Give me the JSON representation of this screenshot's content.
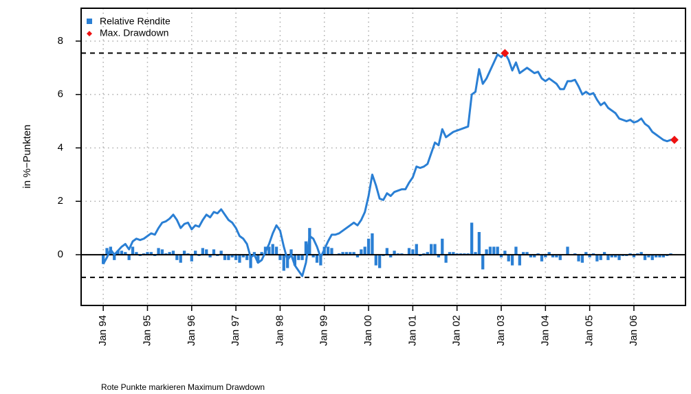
{
  "chart_data": {
    "type": "bar",
    "ylabel": "in %−Punkten",
    "footnote": "Rote Punkte markieren Maximum Drawdown",
    "legend": "top-left",
    "grid": true,
    "xlim": [
      "1993-07",
      "2007-03"
    ],
    "ylim": [
      -1.9,
      9.23
    ],
    "yticks": [
      0,
      2,
      4,
      6,
      8
    ],
    "xticks": [
      {
        "value": "1994-01",
        "label": "Jan 94"
      },
      {
        "value": "1995-01",
        "label": "Jan 95"
      },
      {
        "value": "1996-01",
        "label": "Jan 96"
      },
      {
        "value": "1997-01",
        "label": "Jan 97"
      },
      {
        "value": "1998-01",
        "label": "Jan 98"
      },
      {
        "value": "1999-01",
        "label": "Jan 99"
      },
      {
        "value": "2000-01",
        "label": "Jan 00"
      },
      {
        "value": "2001-01",
        "label": "Jan 01"
      },
      {
        "value": "2002-01",
        "label": "Jan 02"
      },
      {
        "value": "2003-01",
        "label": "Jan 03"
      },
      {
        "value": "2004-01",
        "label": "Jan 04"
      },
      {
        "value": "2005-01",
        "label": "Jan 05"
      },
      {
        "value": "2006-01",
        "label": "Jan 06"
      }
    ],
    "x": [
      "1994-01",
      "1994-02",
      "1994-03",
      "1994-04",
      "1994-05",
      "1994-06",
      "1994-07",
      "1994-08",
      "1994-09",
      "1994-10",
      "1994-11",
      "1994-12",
      "1995-01",
      "1995-02",
      "1995-03",
      "1995-04",
      "1995-05",
      "1995-06",
      "1995-07",
      "1995-08",
      "1995-09",
      "1995-10",
      "1995-11",
      "1995-12",
      "1996-01",
      "1996-02",
      "1996-03",
      "1996-04",
      "1996-05",
      "1996-06",
      "1996-07",
      "1996-08",
      "1996-09",
      "1996-10",
      "1996-11",
      "1996-12",
      "1997-01",
      "1997-02",
      "1997-03",
      "1997-04",
      "1997-05",
      "1997-06",
      "1997-07",
      "1997-08",
      "1997-09",
      "1997-10",
      "1997-11",
      "1997-12",
      "1998-01",
      "1998-02",
      "1998-03",
      "1998-04",
      "1998-05",
      "1998-06",
      "1998-07",
      "1998-08",
      "1998-09",
      "1998-10",
      "1998-11",
      "1998-12",
      "1999-01",
      "1999-02",
      "1999-03",
      "1999-04",
      "1999-05",
      "1999-06",
      "1999-07",
      "1999-08",
      "1999-09",
      "1999-10",
      "1999-11",
      "1999-12",
      "2000-01",
      "2000-02",
      "2000-03",
      "2000-04",
      "2000-05",
      "2000-06",
      "2000-07",
      "2000-08",
      "2000-09",
      "2000-10",
      "2000-11",
      "2000-12",
      "2001-01",
      "2001-02",
      "2001-03",
      "2001-04",
      "2001-05",
      "2001-06",
      "2001-07",
      "2001-08",
      "2001-09",
      "2001-10",
      "2001-11",
      "2001-12",
      "2002-01",
      "2002-02",
      "2002-03",
      "2002-04",
      "2002-05",
      "2002-06",
      "2002-07",
      "2002-08",
      "2002-09",
      "2002-10",
      "2002-11",
      "2002-12",
      "2003-01",
      "2003-02",
      "2003-03",
      "2003-04",
      "2003-05",
      "2003-06",
      "2003-07",
      "2003-08",
      "2003-09",
      "2003-10",
      "2003-11",
      "2003-12",
      "2004-01",
      "2004-02",
      "2004-03",
      "2004-04",
      "2004-05",
      "2004-06",
      "2004-07",
      "2004-08",
      "2004-09",
      "2004-10",
      "2004-11",
      "2004-12",
      "2005-01",
      "2005-02",
      "2005-03",
      "2005-04",
      "2005-05",
      "2005-06",
      "2005-07",
      "2005-08",
      "2005-09",
      "2005-10",
      "2005-11",
      "2005-12",
      "2006-01",
      "2006-02",
      "2006-03",
      "2006-04",
      "2006-05",
      "2006-06",
      "2006-07",
      "2006-08",
      "2006-09",
      "2006-10",
      "2006-11",
      "2006-12"
    ],
    "series": [
      {
        "name": "Relative Rendite",
        "color": "#2a7fd4",
        "values": [
          -0.35,
          0.25,
          0.3,
          -0.2,
          0.15,
          0.15,
          0.1,
          -0.2,
          0.3,
          0.1,
          -0.05,
          0.05,
          0.1,
          0.1,
          -0.05,
          0.25,
          0.2,
          0.05,
          0.1,
          0.15,
          -0.2,
          -0.3,
          0.15,
          0.05,
          -0.25,
          0.15,
          -0.05,
          0.25,
          0.2,
          -0.1,
          0.2,
          -0.05,
          0.15,
          -0.2,
          -0.2,
          -0.1,
          -0.2,
          -0.3,
          -0.1,
          -0.2,
          -0.5,
          0.1,
          -0.3,
          0.1,
          0.3,
          0.3,
          0.4,
          0.3,
          -0.2,
          -0.6,
          -0.5,
          0.2,
          -0.4,
          -0.2,
          -0.2,
          0.5,
          1.0,
          -0.1,
          -0.3,
          -0.4,
          0.3,
          0.3,
          0.25,
          0,
          0.05,
          0.1,
          0.1,
          0.1,
          0.1,
          -0.1,
          0.2,
          0.3,
          0.6,
          0.8,
          -0.4,
          -0.5,
          -0.05,
          0.25,
          -0.1,
          0.15,
          0.05,
          0.05,
          0,
          0.25,
          0.2,
          0.4,
          -0.05,
          0.05,
          0.1,
          0.4,
          0.4,
          -0.1,
          0.6,
          -0.3,
          0.1,
          0.1,
          0.05,
          0.05,
          0.05,
          0.05,
          1.2,
          0.1,
          0.85,
          -0.55,
          0.2,
          0.3,
          0.3,
          0.3,
          -0.1,
          0.15,
          -0.25,
          -0.4,
          0.3,
          -0.4,
          0.1,
          0.1,
          -0.1,
          -0.1,
          0.05,
          -0.25,
          -0.1,
          0.1,
          -0.1,
          -0.1,
          -0.2,
          0,
          0.3,
          0,
          0.05,
          -0.25,
          -0.3,
          0.1,
          -0.1,
          0.05,
          -0.25,
          -0.2,
          0.1,
          -0.2,
          -0.1,
          -0.1,
          -0.2,
          -0.05,
          -0.05,
          0.05,
          -0.1,
          0.05,
          0.1,
          -0.2,
          -0.1,
          -0.2,
          -0.1,
          -0.1,
          -0.1,
          -0.05,
          0.05,
          0
        ]
      }
    ],
    "cumulative": {
      "color": "#2a7fd4",
      "values": [
        -0.35,
        -0.1,
        0.2,
        0.0,
        0.15,
        0.3,
        0.4,
        0.2,
        0.5,
        0.6,
        0.55,
        0.6,
        0.7,
        0.8,
        0.75,
        1.0,
        1.2,
        1.25,
        1.35,
        1.5,
        1.3,
        1.0,
        1.15,
        1.2,
        0.95,
        1.1,
        1.05,
        1.3,
        1.5,
        1.4,
        1.6,
        1.55,
        1.7,
        1.5,
        1.3,
        1.2,
        1.0,
        0.7,
        0.6,
        0.4,
        -0.1,
        0.0,
        -0.3,
        -0.2,
        0.1,
        0.4,
        0.8,
        1.1,
        0.9,
        0.3,
        -0.2,
        0.0,
        -0.4,
        -0.6,
        -0.8,
        -0.3,
        0.7,
        0.6,
        0.3,
        -0.1,
        0.2,
        0.5,
        0.75,
        0.75,
        0.8,
        0.9,
        1.0,
        1.1,
        1.2,
        1.1,
        1.3,
        1.6,
        2.2,
        3.0,
        2.6,
        2.1,
        2.05,
        2.3,
        2.2,
        2.35,
        2.4,
        2.45,
        2.45,
        2.7,
        2.9,
        3.3,
        3.25,
        3.3,
        3.4,
        3.8,
        4.2,
        4.1,
        4.7,
        4.4,
        4.5,
        4.6,
        4.65,
        4.7,
        4.75,
        4.8,
        6.0,
        6.1,
        6.95,
        6.4,
        6.6,
        6.9,
        7.2,
        7.5,
        7.4,
        7.55,
        7.3,
        6.9,
        7.2,
        6.8,
        6.9,
        7.0,
        6.9,
        6.8,
        6.85,
        6.6,
        6.5,
        6.6,
        6.5,
        6.4,
        6.2,
        6.2,
        6.5,
        6.5,
        6.55,
        6.3,
        6.0,
        6.1,
        6.0,
        6.05,
        5.8,
        5.6,
        5.7,
        5.5,
        5.4,
        5.3,
        5.1,
        5.05,
        5.0,
        5.05,
        4.95,
        5.0,
        5.1,
        4.9,
        4.8,
        4.6,
        4.5,
        4.4,
        4.3,
        4.25,
        4.3,
        4.3
      ]
    },
    "drawdown": {
      "name": "Max. Drawdown",
      "color": "#ee1111",
      "x": [
        "2003-02",
        "2006-12"
      ],
      "values": [
        7.55,
        4.3
      ]
    },
    "reference_lines": [
      7.55,
      -0.85
    ]
  }
}
